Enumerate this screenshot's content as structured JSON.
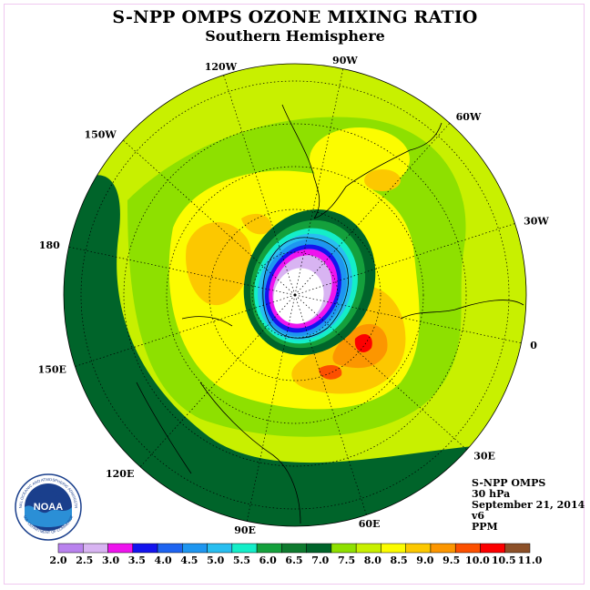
{
  "title": "S-NPP OMPS OZONE MIXING RATIO",
  "subtitle": "Southern Hemisphere",
  "longitude_labels": [
    "90W",
    "60W",
    "30W",
    "0",
    "30E",
    "60E",
    "90E",
    "120E",
    "150E",
    "180",
    "150W",
    "120W"
  ],
  "info": {
    "instrument": "S-NPP OMPS",
    "level": "30 hPa",
    "date": "September 21, 2014",
    "version": "v6",
    "units": "PPM"
  },
  "logo": {
    "text": "NOAA",
    "ring_text": "NATIONAL OCEANIC AND ATMOSPHERIC ADMINISTRATION",
    "ring_text_bottom": "U.S. DEPARTMENT OF COMMERCE"
  },
  "colorbar": {
    "ticks": [
      "2.0",
      "2.5",
      "3.0",
      "3.5",
      "4.0",
      "4.5",
      "5.0",
      "5.5",
      "6.0",
      "6.5",
      "7.0",
      "7.5",
      "8.0",
      "8.5",
      "9.0",
      "9.5",
      "10.0",
      "10.5",
      "11.0"
    ],
    "colors": [
      "#b982ee",
      "#d8b4f2",
      "#ee14ee",
      "#1414ee",
      "#1e64f0",
      "#1e96f0",
      "#28bef0",
      "#14eec8",
      "#14a03c",
      "#0e7a2e",
      "#00642a",
      "#8ee000",
      "#c8f000",
      "#fcfc00",
      "#fcc800",
      "#fc9600",
      "#fc5000",
      "#fc0000",
      "#8c5028"
    ]
  }
}
